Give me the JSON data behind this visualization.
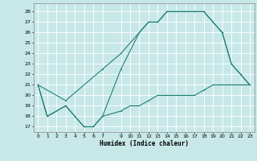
{
  "xlabel": "Humidex (Indice chaleur)",
  "bg_color": "#c8e8e8",
  "line_color": "#1a7a6e",
  "grid_color": "#ffffff",
  "xlim": [
    -0.5,
    23.5
  ],
  "ylim": [
    16.5,
    28.8
  ],
  "yticks": [
    17,
    18,
    19,
    20,
    21,
    22,
    23,
    24,
    25,
    26,
    27,
    28
  ],
  "xticks": [
    0,
    1,
    2,
    3,
    4,
    5,
    6,
    7,
    9,
    10,
    11,
    12,
    13,
    14,
    15,
    16,
    17,
    18,
    19,
    20,
    21,
    22,
    23
  ],
  "line1_x": [
    0,
    1,
    3,
    4,
    5,
    6,
    7,
    9,
    11,
    12,
    13,
    14,
    15,
    16,
    17,
    18,
    19,
    20,
    21,
    22,
    23
  ],
  "line1_y": [
    21,
    18,
    19,
    18,
    17,
    17,
    18,
    22.5,
    26,
    27,
    27,
    28,
    28,
    28,
    28,
    28,
    27,
    26,
    23,
    22,
    21
  ],
  "line2_x": [
    0,
    3,
    7,
    9,
    12,
    13,
    14,
    15,
    16,
    17,
    18,
    19,
    20,
    21,
    22,
    23
  ],
  "line2_y": [
    21,
    19.5,
    22.5,
    24,
    27,
    27,
    28,
    28,
    28,
    28,
    28,
    27,
    26,
    23,
    22,
    21
  ],
  "line3_x": [
    0,
    1,
    3,
    4,
    5,
    6,
    7,
    9,
    10,
    11,
    12,
    13,
    14,
    15,
    16,
    17,
    18,
    19,
    20,
    21,
    22,
    23
  ],
  "line3_y": [
    21,
    18,
    19,
    18,
    17,
    17,
    18,
    18.5,
    19,
    19,
    19.5,
    20,
    20,
    20,
    20,
    20,
    20.5,
    21,
    21,
    21,
    21,
    21
  ]
}
